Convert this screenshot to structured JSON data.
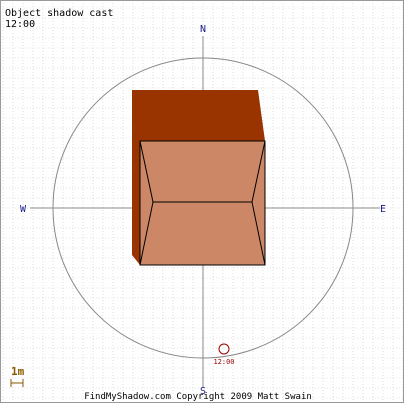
{
  "header": {
    "title": "Object shadow cast",
    "time": "12:00"
  },
  "compass": {
    "north": "N",
    "south": "S",
    "east": "E",
    "west": "W"
  },
  "sun_marker": {
    "label": "12:00"
  },
  "scale": {
    "label": "1m"
  },
  "footer": {
    "copyright": "FindMyShadow.com Copyright 2009 Matt Swain"
  },
  "colors": {
    "background": "#ffffff",
    "grid": "#c8c8c8",
    "compass_circle": "#888888",
    "axis": "#888888",
    "compass_text": "#1a1a8a",
    "shadow": "#993300",
    "object_face": "#cc8866",
    "object_outline": "#000000",
    "sun_marker": "#990000",
    "scale_mark": "#8a5a00"
  }
}
